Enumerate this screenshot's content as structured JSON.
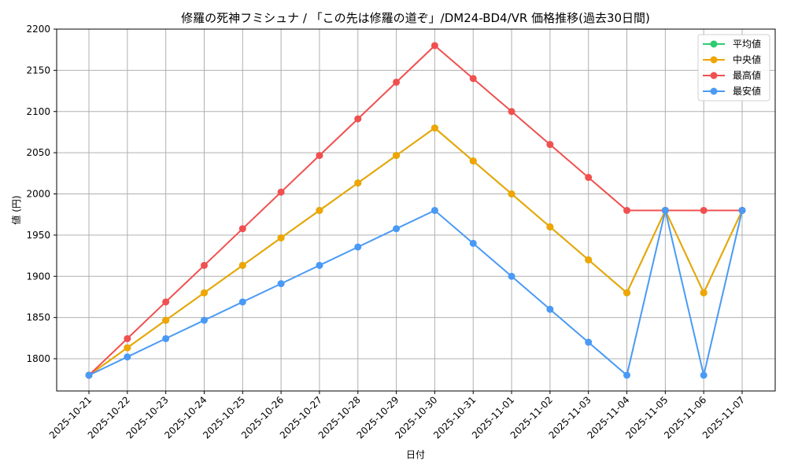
{
  "chart_data": {
    "type": "line",
    "title": "修羅の死神フミシュナ / 「この先は修羅の道ぞ」/DM24-BD4/VR 価格推移(過去30日間)",
    "xlabel": "日付",
    "ylabel": "値 (円)",
    "ylim": [
      1760,
      2200
    ],
    "yticks": [
      1800,
      1850,
      1900,
      1950,
      2000,
      2050,
      2100,
      2150,
      2200
    ],
    "grid": true,
    "legend_position": "upper right",
    "categories": [
      "2025-10-21",
      "2025-10-22",
      "2025-10-23",
      "2025-10-24",
      "2025-10-25",
      "2025-10-26",
      "2025-10-27",
      "2025-10-28",
      "2025-10-29",
      "2025-10-30",
      "2025-10-31",
      "2025-11-01",
      "2025-11-02",
      "2025-11-03",
      "2025-11-04",
      "2025-11-05",
      "2025-11-06",
      "2025-11-07"
    ],
    "series": [
      {
        "name": "平均値",
        "color": "#2ecc71",
        "values": [
          1780,
          1813.3,
          1846.7,
          1880,
          1913.3,
          1946.7,
          1980,
          2013.3,
          2046.7,
          2080,
          2040,
          2000,
          1960,
          1920,
          1880,
          1980,
          1880,
          1980
        ]
      },
      {
        "name": "中央値",
        "color": "#f0a500",
        "values": [
          1780,
          1813.3,
          1846.7,
          1880,
          1913.3,
          1946.7,
          1980,
          2013.3,
          2046.7,
          2080,
          2040,
          2000,
          1960,
          1920,
          1880,
          1980,
          1880,
          1980
        ]
      },
      {
        "name": "最高値",
        "color": "#f05050",
        "values": [
          1780,
          1824.4,
          1868.9,
          1913.3,
          1957.8,
          2002.2,
          2046.7,
          2091.1,
          2135.6,
          2180,
          2140,
          2100,
          2060,
          2020,
          1980,
          1980,
          1980,
          1980
        ]
      },
      {
        "name": "最安値",
        "color": "#4a9af5",
        "values": [
          1780,
          1802.2,
          1824.4,
          1846.7,
          1868.9,
          1891.1,
          1913.3,
          1935.6,
          1957.8,
          1980,
          1940,
          1900,
          1860,
          1820,
          1780,
          1980,
          1780,
          1980
        ]
      }
    ]
  }
}
